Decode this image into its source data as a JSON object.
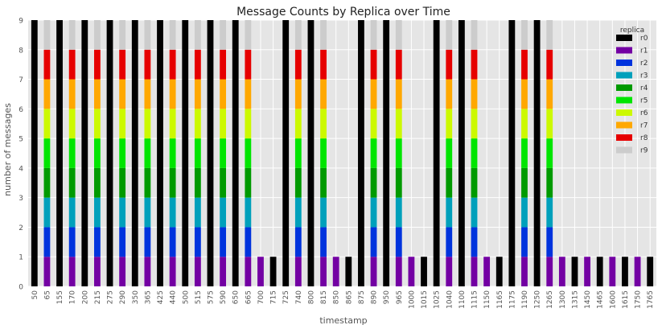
{
  "chart_data": {
    "type": "bar",
    "stacked": true,
    "title": "Message Counts by Replica over Time",
    "xlabel": "timestamp",
    "ylabel": "number of messages",
    "ylim": [
      0,
      9
    ],
    "yticks": [
      0,
      1,
      2,
      3,
      4,
      5,
      6,
      7,
      8,
      9
    ],
    "grid": true,
    "legend": {
      "title": "replica",
      "position": "top-right"
    },
    "categories": [
      "50",
      "65",
      "155",
      "170",
      "200",
      "215",
      "275",
      "290",
      "350",
      "365",
      "425",
      "440",
      "500",
      "515",
      "575",
      "590",
      "650",
      "665",
      "700",
      "715",
      "725",
      "740",
      "800",
      "815",
      "850",
      "865",
      "875",
      "890",
      "950",
      "965",
      "1000",
      "1015",
      "1025",
      "1040",
      "1100",
      "1115",
      "1150",
      "1165",
      "1175",
      "1190",
      "1250",
      "1265",
      "1300",
      "1315",
      "1450",
      "1465",
      "1600",
      "1615",
      "1750",
      "1765"
    ],
    "series": [
      {
        "name": "r0",
        "color": "#000000",
        "values": [
          9,
          0,
          9,
          0,
          9,
          0,
          9,
          0,
          9,
          0,
          9,
          0,
          9,
          0,
          9,
          0,
          9,
          0,
          0,
          1,
          9,
          0,
          9,
          0,
          0,
          1,
          9,
          0,
          9,
          0,
          0,
          1,
          9,
          0,
          9,
          0,
          0,
          1,
          9,
          0,
          9,
          0,
          0,
          1,
          0,
          1,
          0,
          1,
          0,
          1
        ]
      },
      {
        "name": "r1",
        "color": "#7300a3",
        "values": [
          0,
          1,
          0,
          1,
          0,
          1,
          0,
          1,
          0,
          1,
          0,
          1,
          0,
          1,
          0,
          1,
          0,
          1,
          1,
          0,
          0,
          1,
          0,
          1,
          1,
          0,
          0,
          1,
          0,
          1,
          1,
          0,
          0,
          1,
          0,
          1,
          1,
          0,
          0,
          1,
          0,
          1,
          1,
          0,
          1,
          0,
          1,
          0,
          1,
          0
        ]
      },
      {
        "name": "r2",
        "color": "#0033dd",
        "values": [
          0,
          1,
          0,
          1,
          0,
          1,
          0,
          1,
          0,
          1,
          0,
          1,
          0,
          1,
          0,
          1,
          0,
          1,
          0,
          0,
          0,
          1,
          0,
          1,
          0,
          0,
          0,
          1,
          0,
          1,
          0,
          0,
          0,
          1,
          0,
          1,
          0,
          0,
          0,
          1,
          0,
          1,
          0,
          0,
          0,
          0,
          0,
          0,
          0,
          0
        ]
      },
      {
        "name": "r3",
        "color": "#00a0bb",
        "values": [
          0,
          1,
          0,
          1,
          0,
          1,
          0,
          1,
          0,
          1,
          0,
          1,
          0,
          1,
          0,
          1,
          0,
          1,
          0,
          0,
          0,
          1,
          0,
          1,
          0,
          0,
          0,
          1,
          0,
          1,
          0,
          0,
          0,
          1,
          0,
          1,
          0,
          0,
          0,
          1,
          0,
          1,
          0,
          0,
          0,
          0,
          0,
          0,
          0,
          0
        ]
      },
      {
        "name": "r4",
        "color": "#009a00",
        "values": [
          0,
          1,
          0,
          1,
          0,
          1,
          0,
          1,
          0,
          1,
          0,
          1,
          0,
          1,
          0,
          1,
          0,
          1,
          0,
          0,
          0,
          1,
          0,
          1,
          0,
          0,
          0,
          1,
          0,
          1,
          0,
          0,
          0,
          1,
          0,
          1,
          0,
          0,
          0,
          1,
          0,
          1,
          0,
          0,
          0,
          0,
          0,
          0,
          0,
          0
        ]
      },
      {
        "name": "r5",
        "color": "#00e500",
        "values": [
          0,
          1,
          0,
          1,
          0,
          1,
          0,
          1,
          0,
          1,
          0,
          1,
          0,
          1,
          0,
          1,
          0,
          1,
          0,
          0,
          0,
          1,
          0,
          1,
          0,
          0,
          0,
          1,
          0,
          1,
          0,
          0,
          0,
          1,
          0,
          1,
          0,
          0,
          0,
          1,
          0,
          1,
          0,
          0,
          0,
          0,
          0,
          0,
          0,
          0
        ]
      },
      {
        "name": "r6",
        "color": "#ccf900",
        "values": [
          0,
          1,
          0,
          1,
          0,
          1,
          0,
          1,
          0,
          1,
          0,
          1,
          0,
          1,
          0,
          1,
          0,
          1,
          0,
          0,
          0,
          1,
          0,
          1,
          0,
          0,
          0,
          1,
          0,
          1,
          0,
          0,
          0,
          1,
          0,
          1,
          0,
          0,
          0,
          1,
          0,
          1,
          0,
          0,
          0,
          0,
          0,
          0,
          0,
          0
        ]
      },
      {
        "name": "r7",
        "color": "#ffa800",
        "values": [
          0,
          1,
          0,
          1,
          0,
          1,
          0,
          1,
          0,
          1,
          0,
          1,
          0,
          1,
          0,
          1,
          0,
          1,
          0,
          0,
          0,
          1,
          0,
          1,
          0,
          0,
          0,
          1,
          0,
          1,
          0,
          0,
          0,
          1,
          0,
          1,
          0,
          0,
          0,
          1,
          0,
          1,
          0,
          0,
          0,
          0,
          0,
          0,
          0,
          0
        ]
      },
      {
        "name": "r8",
        "color": "#e60000",
        "values": [
          0,
          1,
          0,
          1,
          0,
          1,
          0,
          1,
          0,
          1,
          0,
          1,
          0,
          1,
          0,
          1,
          0,
          1,
          0,
          0,
          0,
          1,
          0,
          1,
          0,
          0,
          0,
          1,
          0,
          1,
          0,
          0,
          0,
          1,
          0,
          1,
          0,
          0,
          0,
          1,
          0,
          1,
          0,
          0,
          0,
          0,
          0,
          0,
          0,
          0
        ]
      },
      {
        "name": "r9",
        "color": "#cccccc",
        "values": [
          0,
          1,
          0,
          1,
          0,
          1,
          0,
          1,
          0,
          1,
          0,
          1,
          0,
          1,
          0,
          1,
          0,
          1,
          0,
          0,
          0,
          1,
          0,
          1,
          0,
          0,
          0,
          1,
          0,
          1,
          0,
          0,
          0,
          1,
          0,
          1,
          0,
          0,
          0,
          1,
          0,
          1,
          0,
          0,
          0,
          0,
          0,
          0,
          0,
          0
        ]
      }
    ]
  }
}
